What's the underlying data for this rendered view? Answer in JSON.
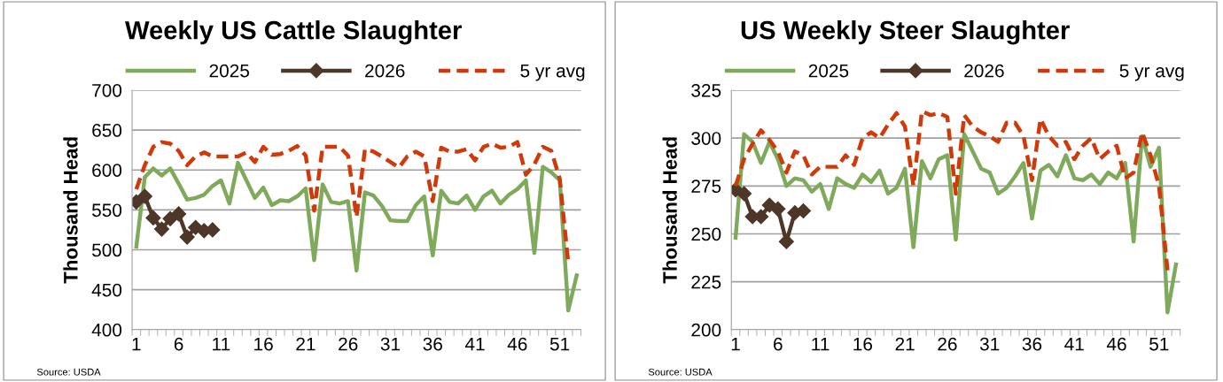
{
  "chart_data": [
    {
      "type": "line",
      "title": "Weekly US Cattle Slaughter",
      "ylabel": "Thousand Head",
      "categories": [
        "1",
        null,
        null,
        null,
        null,
        "6",
        null,
        null,
        null,
        null,
        "11",
        null,
        null,
        null,
        null,
        "16",
        null,
        null,
        null,
        null,
        "21",
        null,
        null,
        null,
        null,
        "26",
        null,
        null,
        null,
        null,
        "31",
        null,
        null,
        null,
        null,
        "36",
        null,
        null,
        null,
        null,
        "41",
        null,
        null,
        null,
        null,
        "46",
        null,
        null,
        null,
        null,
        "51",
        null,
        null
      ],
      "ylim": [
        400,
        700
      ],
      "yticks": [
        400,
        450,
        500,
        550,
        600,
        650,
        700
      ],
      "grid": "y",
      "legend": "top",
      "annotations": [
        "Source: USDA"
      ],
      "series": [
        {
          "name": "2025",
          "color": "#7faa5c",
          "marker": "none",
          "line_style": "solid",
          "values": [
            504,
            591,
            602,
            593,
            602,
            583,
            563,
            565,
            569,
            580,
            587,
            558,
            609,
            587,
            565,
            578,
            556,
            562,
            561,
            567,
            577,
            487,
            582,
            560,
            558,
            561,
            474,
            572,
            568,
            555,
            537,
            536,
            536,
            556,
            567,
            493,
            574,
            560,
            558,
            568,
            550,
            567,
            574,
            558,
            569,
            576,
            587,
            496,
            604,
            597,
            587,
            424,
            468
          ]
        },
        {
          "name": "2026",
          "color": "#4e3629",
          "marker": "diamond",
          "line_style": "solid",
          "values": [
            560,
            567,
            540,
            526,
            539,
            545,
            516,
            528,
            524,
            525,
            null,
            null,
            null,
            null,
            null,
            null,
            null,
            null,
            null,
            null,
            null,
            null,
            null,
            null,
            null,
            null,
            null,
            null,
            null,
            null,
            null,
            null,
            null,
            null,
            null,
            null,
            null,
            null,
            null,
            null,
            null,
            null,
            null,
            null,
            null,
            null,
            null,
            null,
            null,
            null,
            null,
            null,
            null
          ]
        },
        {
          "name": "5 yr avg",
          "color": "#d03a0a",
          "marker": "none",
          "line_style": "dashed",
          "values": [
            576,
            606,
            629,
            635,
            633,
            624,
            606,
            617,
            622,
            617,
            617,
            617,
            617,
            622,
            610,
            629,
            619,
            620,
            624,
            630,
            618,
            549,
            629,
            629,
            629,
            618,
            541,
            626,
            623,
            617,
            610,
            603,
            617,
            623,
            617,
            561,
            628,
            623,
            623,
            626,
            612,
            629,
            633,
            628,
            629,
            635,
            594,
            607,
            629,
            624,
            589,
            484,
            null
          ]
        }
      ]
    },
    {
      "type": "line",
      "title": "US Weekly Steer Slaughter",
      "ylabel": "Thousand Head",
      "categories": [
        "1",
        null,
        null,
        null,
        null,
        "6",
        null,
        null,
        null,
        null,
        "11",
        null,
        null,
        null,
        null,
        "16",
        null,
        null,
        null,
        null,
        "21",
        null,
        null,
        null,
        null,
        "26",
        null,
        null,
        null,
        null,
        "31",
        null,
        null,
        null,
        null,
        "36",
        null,
        null,
        null,
        null,
        "41",
        null,
        null,
        null,
        null,
        "46",
        null,
        null,
        null,
        null,
        "51",
        null,
        null
      ],
      "ylim": [
        200,
        325
      ],
      "yticks": [
        200,
        225,
        250,
        275,
        300,
        325
      ],
      "grid": "y",
      "legend": "top",
      "annotations": [
        "Source: USDA"
      ],
      "series": [
        {
          "name": "2025",
          "color": "#7faa5c",
          "marker": "none",
          "line_style": "solid",
          "values": [
            248,
            302,
            298,
            287,
            298,
            289,
            275,
            279,
            278,
            272,
            276,
            263,
            279,
            276,
            274,
            281,
            277,
            283,
            271,
            274,
            284,
            243,
            288,
            279,
            289,
            291,
            247,
            302,
            293,
            284,
            282,
            271,
            274,
            280,
            287,
            258,
            283,
            286,
            280,
            291,
            279,
            278,
            281,
            276,
            282,
            279,
            287,
            246,
            301,
            285,
            295,
            209,
            234
          ]
        },
        {
          "name": "2026",
          "color": "#4e3629",
          "marker": "diamond",
          "line_style": "solid",
          "values": [
            273,
            271,
            259,
            259,
            265,
            263,
            246,
            261,
            262,
            null,
            null,
            null,
            null,
            null,
            null,
            null,
            null,
            null,
            null,
            null,
            null,
            null,
            null,
            null,
            null,
            null,
            null,
            null,
            null,
            null,
            null,
            null,
            null,
            null,
            null,
            null,
            null,
            null,
            null,
            null,
            null,
            null,
            null,
            null,
            null,
            null,
            null,
            null,
            null,
            null,
            null,
            null,
            null
          ]
        },
        {
          "name": "5 yr avg",
          "color": "#d03a0a",
          "marker": "none",
          "line_style": "dashed",
          "values": [
            275,
            289,
            297,
            304,
            299,
            293,
            282,
            293,
            291,
            281,
            285,
            285,
            285,
            291,
            286,
            300,
            303,
            300,
            307,
            313,
            306,
            275,
            314,
            312,
            313,
            311,
            271,
            312,
            306,
            303,
            301,
            298,
            308,
            308,
            301,
            278,
            310,
            301,
            296,
            298,
            289,
            296,
            300,
            289,
            293,
            296,
            279,
            282,
            303,
            291,
            275,
            231,
            null
          ]
        }
      ]
    }
  ]
}
